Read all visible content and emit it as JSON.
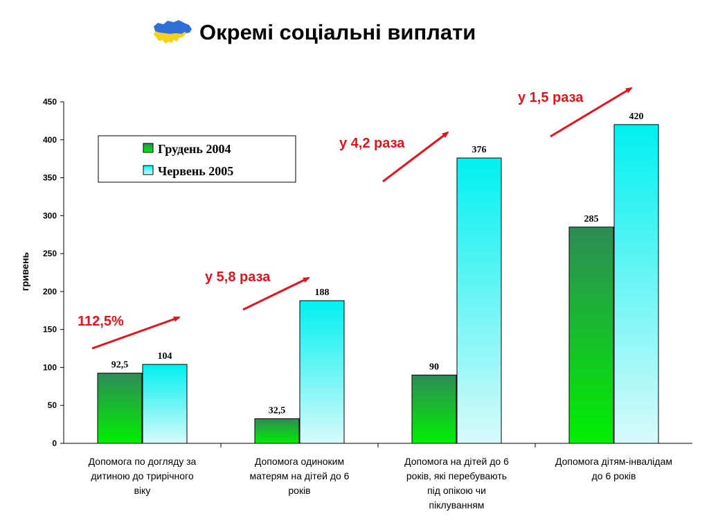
{
  "title": "Окремі соціальні виплати",
  "icons": {
    "logo": "ukraine-map-icon"
  },
  "colors": {
    "series1_top": "#2e8b57",
    "series1_bottom": "#00f000",
    "series2_top": "#00f0f0",
    "series2_bottom": "#d8fafa",
    "arrow": "#e8111c"
  },
  "chart_data": {
    "type": "bar",
    "ylabel": "гривень",
    "xlabel": "",
    "ylim": [
      0,
      450
    ],
    "yticks": [
      0,
      50,
      100,
      150,
      200,
      250,
      300,
      350,
      400,
      450
    ],
    "categories": [
      [
        "Допомога по догляду за",
        "дитиною до трирічного",
        "віку"
      ],
      [
        "Допомога одиноким",
        "матерям на дітей до 6",
        "років"
      ],
      [
        "Допомога на дітей до 6",
        "років, які перебувають",
        "під опікою чи",
        "піклуванням"
      ],
      [
        "Допомога дітям-інвалідам",
        "до 6 років"
      ]
    ],
    "series": [
      {
        "name": "Грудень 2004",
        "values": [
          92.5,
          32.5,
          90,
          285
        ],
        "labels": [
          "92,5",
          "32,5",
          "90",
          "285"
        ]
      },
      {
        "name": "Червень 2005",
        "values": [
          104,
          188,
          376,
          420
        ],
        "labels": [
          "104",
          "188",
          "376",
          "420"
        ]
      }
    ],
    "legend_position": "top-left",
    "annotations": [
      "112,5%",
      "у 5,8 раза",
      "у 4,2 раза",
      "у 1,5 раза"
    ]
  }
}
